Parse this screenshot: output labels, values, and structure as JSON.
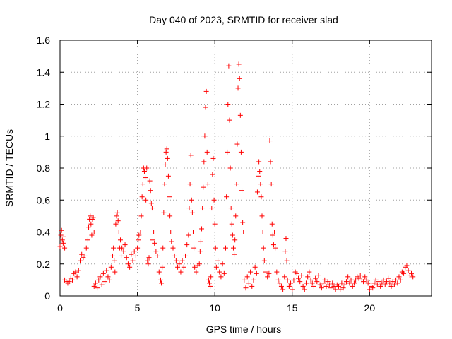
{
  "chart_data": {
    "type": "scatter",
    "title": "Day 040 of 2023, SRMTID for receiver slad",
    "xlabel": "GPS time / hours",
    "ylabel": "SRMTID / TECUs",
    "xlim": [
      0,
      24
    ],
    "ylim": [
      0,
      1.6
    ],
    "x_ticks": [
      0,
      5,
      10,
      15,
      20
    ],
    "x_tick_labels": [
      "0",
      "5",
      "10",
      "15",
      "20"
    ],
    "y_ticks": [
      0,
      0.2,
      0.4,
      0.6,
      0.8,
      1.0,
      1.2,
      1.4,
      1.6
    ],
    "y_tick_labels": [
      "0",
      "0.2",
      "0.4",
      "0.6",
      "0.8",
      "1",
      "1.2",
      "1.4",
      "1.6"
    ],
    "grid": true,
    "marker": "+",
    "marker_color": "#ff0000",
    "series": [
      {
        "name": "SRMTID",
        "points": [
          [
            0.0,
            0.31
          ],
          [
            0.05,
            0.38
          ],
          [
            0.1,
            0.41
          ],
          [
            0.15,
            0.35
          ],
          [
            0.2,
            0.33
          ],
          [
            0.25,
            0.37
          ],
          [
            0.3,
            0.3
          ],
          [
            0.3,
            0.1
          ],
          [
            0.4,
            0.09
          ],
          [
            0.5,
            0.08
          ],
          [
            0.6,
            0.09
          ],
          [
            0.7,
            0.11
          ],
          [
            0.8,
            0.1
          ],
          [
            0.9,
            0.14
          ],
          [
            1.0,
            0.15
          ],
          [
            1.1,
            0.12
          ],
          [
            1.2,
            0.16
          ],
          [
            1.3,
            0.22
          ],
          [
            1.4,
            0.26
          ],
          [
            1.5,
            0.24
          ],
          [
            1.6,
            0.25
          ],
          [
            1.7,
            0.3
          ],
          [
            1.8,
            0.35
          ],
          [
            1.85,
            0.43
          ],
          [
            1.9,
            0.48
          ],
          [
            1.95,
            0.5
          ],
          [
            2.0,
            0.45
          ],
          [
            2.05,
            0.38
          ],
          [
            2.1,
            0.48
          ],
          [
            2.15,
            0.49
          ],
          [
            2.2,
            0.4
          ],
          [
            2.2,
            0.06
          ],
          [
            2.3,
            0.08
          ],
          [
            2.4,
            0.05
          ],
          [
            2.5,
            0.1
          ],
          [
            2.6,
            0.12
          ],
          [
            2.7,
            0.07
          ],
          [
            2.8,
            0.14
          ],
          [
            2.9,
            0.09
          ],
          [
            3.0,
            0.16
          ],
          [
            3.1,
            0.12
          ],
          [
            3.2,
            0.1
          ],
          [
            3.3,
            0.18
          ],
          [
            3.4,
            0.25
          ],
          [
            3.45,
            0.3
          ],
          [
            3.5,
            0.22
          ],
          [
            3.55,
            0.15
          ],
          [
            3.6,
            0.45
          ],
          [
            3.65,
            0.5
          ],
          [
            3.7,
            0.52
          ],
          [
            3.75,
            0.47
          ],
          [
            3.8,
            0.4
          ],
          [
            3.85,
            0.3
          ],
          [
            3.9,
            0.35
          ],
          [
            3.95,
            0.25
          ],
          [
            4.0,
            0.3
          ],
          [
            4.1,
            0.28
          ],
          [
            4.2,
            0.32
          ],
          [
            4.3,
            0.24
          ],
          [
            4.4,
            0.2
          ],
          [
            4.5,
            0.18
          ],
          [
            4.6,
            0.26
          ],
          [
            4.7,
            0.22
          ],
          [
            4.8,
            0.28
          ],
          [
            4.9,
            0.25
          ],
          [
            5.0,
            0.3
          ],
          [
            5.05,
            0.35
          ],
          [
            5.1,
            0.38
          ],
          [
            5.2,
            0.4
          ],
          [
            5.25,
            0.5
          ],
          [
            5.3,
            0.62
          ],
          [
            5.35,
            0.7
          ],
          [
            5.4,
            0.8
          ],
          [
            5.45,
            0.78
          ],
          [
            5.5,
            0.74
          ],
          [
            5.55,
            0.6
          ],
          [
            5.6,
            0.8
          ],
          [
            5.65,
            0.22
          ],
          [
            5.7,
            0.2
          ],
          [
            5.75,
            0.24
          ],
          [
            5.8,
            0.72
          ],
          [
            5.85,
            0.66
          ],
          [
            5.9,
            0.58
          ],
          [
            5.95,
            0.55
          ],
          [
            6.0,
            0.35
          ],
          [
            6.05,
            0.4
          ],
          [
            6.1,
            0.33
          ],
          [
            6.2,
            0.28
          ],
          [
            6.3,
            0.25
          ],
          [
            6.4,
            0.15
          ],
          [
            6.5,
            0.1
          ],
          [
            6.55,
            0.08
          ],
          [
            6.6,
            0.18
          ],
          [
            6.65,
            0.3
          ],
          [
            6.7,
            0.52
          ],
          [
            6.75,
            0.7
          ],
          [
            6.8,
            0.82
          ],
          [
            6.85,
            0.9
          ],
          [
            6.9,
            0.92
          ],
          [
            6.95,
            0.86
          ],
          [
            7.0,
            0.75
          ],
          [
            7.05,
            0.62
          ],
          [
            7.1,
            0.5
          ],
          [
            7.15,
            0.4
          ],
          [
            7.2,
            0.34
          ],
          [
            7.3,
            0.3
          ],
          [
            7.4,
            0.25
          ],
          [
            7.5,
            0.22
          ],
          [
            7.6,
            0.18
          ],
          [
            7.7,
            0.2
          ],
          [
            7.8,
            0.15
          ],
          [
            7.9,
            0.22
          ],
          [
            8.0,
            0.18
          ],
          [
            8.1,
            0.25
          ],
          [
            8.2,
            0.32
          ],
          [
            8.3,
            0.38
          ],
          [
            8.35,
            0.55
          ],
          [
            8.4,
            0.7
          ],
          [
            8.45,
            0.88
          ],
          [
            8.5,
            0.6
          ],
          [
            8.55,
            0.52
          ],
          [
            8.6,
            0.4
          ],
          [
            8.65,
            0.3
          ],
          [
            8.7,
            0.18
          ],
          [
            8.8,
            0.15
          ],
          [
            8.9,
            0.19
          ],
          [
            9.0,
            0.2
          ],
          [
            9.05,
            0.28
          ],
          [
            9.1,
            0.34
          ],
          [
            9.15,
            0.42
          ],
          [
            9.2,
            0.55
          ],
          [
            9.25,
            0.68
          ],
          [
            9.3,
            0.84
          ],
          [
            9.35,
            1.0
          ],
          [
            9.4,
            1.18
          ],
          [
            9.45,
            1.28
          ],
          [
            9.5,
            0.9
          ],
          [
            9.55,
            0.7
          ],
          [
            9.6,
            0.1
          ],
          [
            9.65,
            0.08
          ],
          [
            9.7,
            0.06
          ],
          [
            9.75,
            0.12
          ],
          [
            9.8,
            0.55
          ],
          [
            9.85,
            0.76
          ],
          [
            9.9,
            0.86
          ],
          [
            9.95,
            0.6
          ],
          [
            10.0,
            0.45
          ],
          [
            10.05,
            0.3
          ],
          [
            10.1,
            0.18
          ],
          [
            10.2,
            0.22
          ],
          [
            10.3,
            0.15
          ],
          [
            10.4,
            0.12
          ],
          [
            10.5,
            0.2
          ],
          [
            10.6,
            0.14
          ],
          [
            10.7,
            0.3
          ],
          [
            10.75,
            0.62
          ],
          [
            10.8,
            0.9
          ],
          [
            10.85,
            1.2
          ],
          [
            10.9,
            1.44
          ],
          [
            10.95,
            1.1
          ],
          [
            11.0,
            0.8
          ],
          [
            11.05,
            0.55
          ],
          [
            11.1,
            0.45
          ],
          [
            11.15,
            0.38
          ],
          [
            11.2,
            0.3
          ],
          [
            11.25,
            0.26
          ],
          [
            11.3,
            0.35
          ],
          [
            11.35,
            0.5
          ],
          [
            11.4,
            0.7
          ],
          [
            11.45,
            0.95
          ],
          [
            11.5,
            1.3
          ],
          [
            11.55,
            1.45
          ],
          [
            11.6,
            1.36
          ],
          [
            11.65,
            1.13
          ],
          [
            11.7,
            0.9
          ],
          [
            11.75,
            0.66
          ],
          [
            11.8,
            0.46
          ],
          [
            11.85,
            0.4
          ],
          [
            11.9,
            0.1
          ],
          [
            12.0,
            0.05
          ],
          [
            12.1,
            0.12
          ],
          [
            12.2,
            0.08
          ],
          [
            12.3,
            0.15
          ],
          [
            12.4,
            0.06
          ],
          [
            12.5,
            0.1
          ],
          [
            12.6,
            0.18
          ],
          [
            12.7,
            0.14
          ],
          [
            12.75,
            0.65
          ],
          [
            12.8,
            0.75
          ],
          [
            12.85,
            0.84
          ],
          [
            12.9,
            0.78
          ],
          [
            12.95,
            0.7
          ],
          [
            13.0,
            0.62
          ],
          [
            13.05,
            0.5
          ],
          [
            13.1,
            0.4
          ],
          [
            13.15,
            0.3
          ],
          [
            13.2,
            0.22
          ],
          [
            13.3,
            0.15
          ],
          [
            13.4,
            0.12
          ],
          [
            13.5,
            0.14
          ],
          [
            13.55,
            0.97
          ],
          [
            13.6,
            0.84
          ],
          [
            13.65,
            0.7
          ],
          [
            13.7,
            0.45
          ],
          [
            13.75,
            0.38
          ],
          [
            13.8,
            0.32
          ],
          [
            13.85,
            0.4
          ],
          [
            13.9,
            0.3
          ],
          [
            14.0,
            0.15
          ],
          [
            14.1,
            0.1
          ],
          [
            14.2,
            0.08
          ],
          [
            14.3,
            0.06
          ],
          [
            14.4,
            0.04
          ],
          [
            14.5,
            0.12
          ],
          [
            14.55,
            0.28
          ],
          [
            14.6,
            0.36
          ],
          [
            14.65,
            0.22
          ],
          [
            14.7,
            0.1
          ],
          [
            14.8,
            0.06
          ],
          [
            14.9,
            0.08
          ],
          [
            15.0,
            0.04
          ],
          [
            15.1,
            0.1
          ],
          [
            15.2,
            0.15
          ],
          [
            15.3,
            0.14
          ],
          [
            15.4,
            0.11
          ],
          [
            15.5,
            0.09
          ],
          [
            15.6,
            0.13
          ],
          [
            15.7,
            0.06
          ],
          [
            15.8,
            0.04
          ],
          [
            15.9,
            0.08
          ],
          [
            16.0,
            0.12
          ],
          [
            16.1,
            0.15
          ],
          [
            16.2,
            0.1
          ],
          [
            16.3,
            0.08
          ],
          [
            16.4,
            0.06
          ],
          [
            16.5,
            0.11
          ],
          [
            16.6,
            0.09
          ],
          [
            16.7,
            0.13
          ],
          [
            16.8,
            0.07
          ],
          [
            16.9,
            0.05
          ],
          [
            17.0,
            0.08
          ],
          [
            17.1,
            0.1
          ],
          [
            17.2,
            0.06
          ],
          [
            17.3,
            0.09
          ],
          [
            17.4,
            0.07
          ],
          [
            17.5,
            0.05
          ],
          [
            17.6,
            0.08
          ],
          [
            17.7,
            0.06
          ],
          [
            17.8,
            0.04
          ],
          [
            17.9,
            0.07
          ],
          [
            18.0,
            0.06
          ],
          [
            18.1,
            0.04
          ],
          [
            18.2,
            0.08
          ],
          [
            18.3,
            0.05
          ],
          [
            18.4,
            0.07
          ],
          [
            18.5,
            0.09
          ],
          [
            18.6,
            0.12
          ],
          [
            18.7,
            0.08
          ],
          [
            18.8,
            0.1
          ],
          [
            18.9,
            0.06
          ],
          [
            19.0,
            0.08
          ],
          [
            19.1,
            0.1
          ],
          [
            19.2,
            0.12
          ],
          [
            19.3,
            0.11
          ],
          [
            19.4,
            0.13
          ],
          [
            19.5,
            0.1
          ],
          [
            19.6,
            0.09
          ],
          [
            19.7,
            0.12
          ],
          [
            19.8,
            0.1
          ],
          [
            19.9,
            0.08
          ],
          [
            20.0,
            0.04
          ],
          [
            20.1,
            0.06
          ],
          [
            20.2,
            0.05
          ],
          [
            20.3,
            0.08
          ],
          [
            20.4,
            0.1
          ],
          [
            20.5,
            0.07
          ],
          [
            20.6,
            0.09
          ],
          [
            20.7,
            0.06
          ],
          [
            20.8,
            0.08
          ],
          [
            20.9,
            0.1
          ],
          [
            21.0,
            0.07
          ],
          [
            21.1,
            0.09
          ],
          [
            21.2,
            0.11
          ],
          [
            21.3,
            0.08
          ],
          [
            21.4,
            0.06
          ],
          [
            21.5,
            0.09
          ],
          [
            21.6,
            0.07
          ],
          [
            21.7,
            0.1
          ],
          [
            21.8,
            0.08
          ],
          [
            21.9,
            0.12
          ],
          [
            22.0,
            0.1
          ],
          [
            22.1,
            0.15
          ],
          [
            22.2,
            0.14
          ],
          [
            22.3,
            0.18
          ],
          [
            22.4,
            0.19
          ],
          [
            22.5,
            0.16
          ],
          [
            22.6,
            0.13
          ],
          [
            22.7,
            0.14
          ],
          [
            22.8,
            0.12
          ]
        ]
      }
    ]
  }
}
